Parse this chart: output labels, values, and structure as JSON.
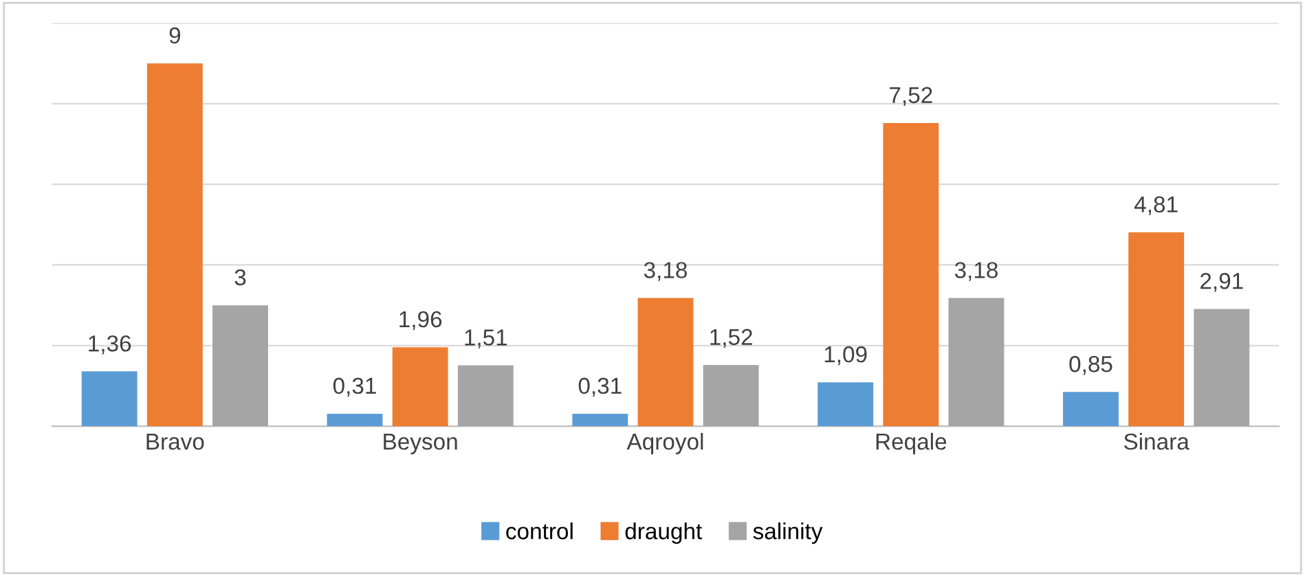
{
  "chart_data": {
    "type": "bar",
    "categories": [
      "Bravo",
      "Beyson",
      "Aqroyol",
      "Reqale",
      "Sinara"
    ],
    "series": [
      {
        "name": "control",
        "color": "#5b9bd5",
        "values": [
          1.36,
          0.31,
          0.31,
          1.09,
          0.85
        ],
        "value_labels": [
          "1,36",
          "0,31",
          "0,31",
          "1,09",
          "0,85"
        ]
      },
      {
        "name": "draught",
        "color": "#ed7d31",
        "values": [
          9,
          1.96,
          3.18,
          7.52,
          4.81
        ],
        "value_labels": [
          "9",
          "1,96",
          "3,18",
          "7,52",
          "4,81"
        ]
      },
      {
        "name": "salinity",
        "color": "#a5a5a5",
        "values": [
          3,
          1.51,
          1.52,
          3.18,
          2.91
        ],
        "value_labels": [
          "3",
          "1,51",
          "1,52",
          "3,18",
          "2,91"
        ]
      }
    ],
    "ylim": [
      0,
      10
    ],
    "yticks": [
      {
        "value": 0,
        "label": null
      },
      {
        "value": 2,
        "label": null
      },
      {
        "value": 4,
        "label": null
      },
      {
        "value": 6,
        "label": null
      },
      {
        "value": 8,
        "label": null
      },
      {
        "value": 10,
        "label": null
      }
    ],
    "tick_labels": "x",
    "grid": "y",
    "legend": "bottom"
  }
}
